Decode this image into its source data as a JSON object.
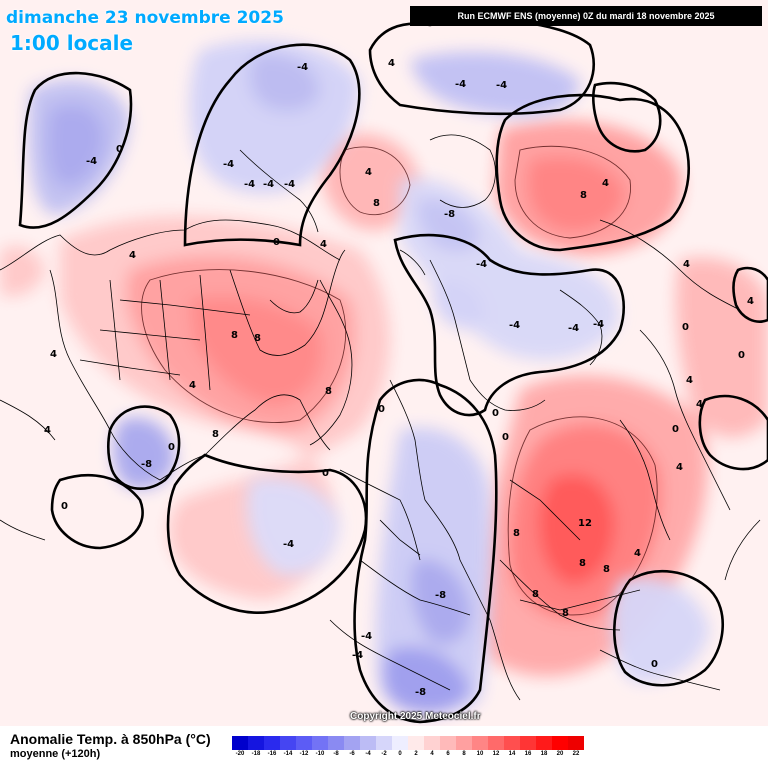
{
  "header": {
    "date_text": "dimanche 23 novembre 2025",
    "local_time": "1:00 locale",
    "run_info": "Run ECMWF ENS (moyenne) 0Z du mardi 18 novembre 2025"
  },
  "watermark": "Copyright 2025 Meteociel.fr",
  "parameter": {
    "title": "Anomalie Temp. à 850hPa (°C)",
    "subtitle": "moyenne   (+120h)"
  },
  "legend": {
    "ticks": [
      "-20",
      "-18",
      "-16",
      "-14",
      "-12",
      "-10",
      "-8",
      "-6",
      "-4",
      "-2",
      "0",
      "2",
      "4",
      "6",
      "8",
      "10",
      "12",
      "14",
      "16",
      "18",
      "20",
      "22"
    ],
    "colors": [
      "#0000cc",
      "#1515e0",
      "#2a2aee",
      "#4545f2",
      "#5c5cf5",
      "#7373f5",
      "#8a8af2",
      "#a3a3f2",
      "#bcbcf5",
      "#d6d6fa",
      "#eeeeff",
      "#ffeaea",
      "#ffd2d2",
      "#ffbaba",
      "#ffa0a0",
      "#ff8585",
      "#ff6a6a",
      "#ff4f4f",
      "#ff3535",
      "#ff1a1a",
      "#ff0000",
      "#ee0000"
    ]
  },
  "contour_labels": [
    "-4",
    "-4",
    "-4",
    "-4",
    "-4",
    "-4",
    "-4",
    "-4",
    "-4",
    "-4",
    "-4",
    "-4",
    "-4",
    "-4",
    "-4",
    "-8",
    "-8",
    "-8",
    "-8",
    "0",
    "0",
    "0",
    "0",
    "0",
    "0",
    "0",
    "0",
    "0",
    "0",
    "0",
    "0",
    "4",
    "4",
    "4",
    "4",
    "4",
    "4",
    "4",
    "4",
    "4",
    "4",
    "4",
    "4",
    "4",
    "4",
    "8",
    "8",
    "8",
    "8",
    "8",
    "8",
    "8",
    "8",
    "8",
    "8",
    "8",
    "12"
  ]
}
